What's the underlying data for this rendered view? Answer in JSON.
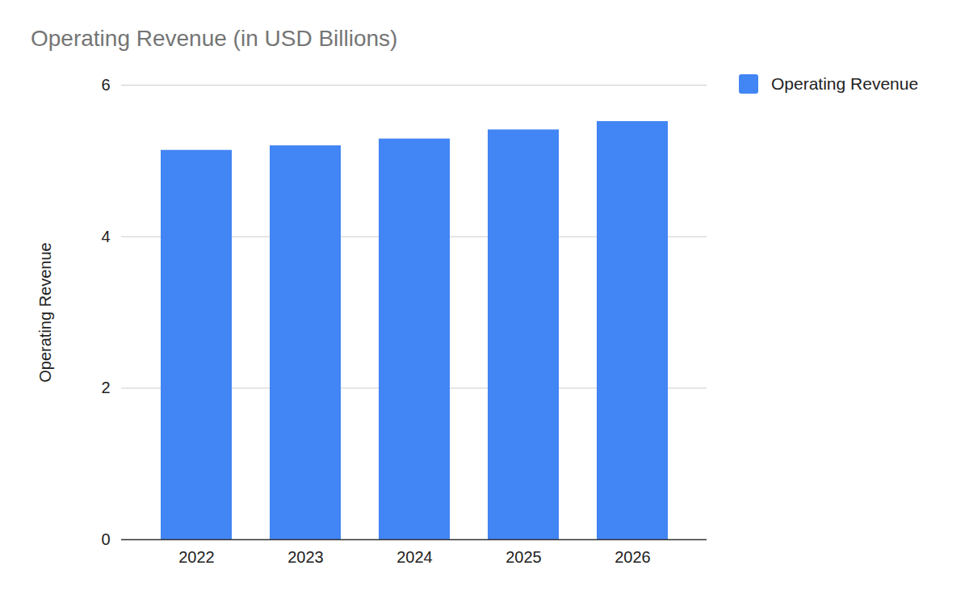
{
  "chart_data": {
    "type": "bar",
    "title": "Operating Revenue (in USD Billions)",
    "y_label": "Operating Revenue",
    "categories": [
      "2022",
      "2023",
      "2024",
      "2025",
      "2026"
    ],
    "series": [
      {
        "name": "Operating Revenue",
        "color": "#4285f4",
        "values": [
          5.14,
          5.2,
          5.29,
          5.41,
          5.52
        ]
      }
    ],
    "ylim": [
      0,
      6
    ],
    "yticks": [
      0,
      2,
      4,
      6
    ],
    "grid": true,
    "legend": "top-right"
  }
}
